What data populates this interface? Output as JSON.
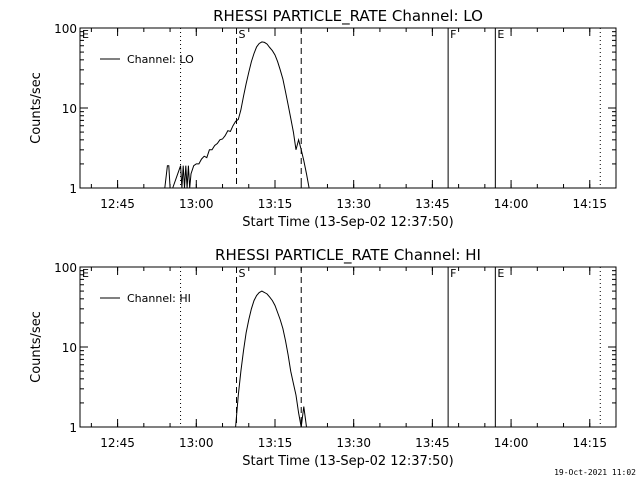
{
  "footer": {
    "timestamp": "19-Oct-2021 11:02"
  },
  "chart_data": [
    {
      "type": "line",
      "title": "RHESSI PARTICLE_RATE Channel: LO",
      "xlabel": "Start Time (13-Sep-02 12:37:50)",
      "ylabel": "Counts/sec",
      "yscale": "log",
      "xlim": [
        "12:37:50",
        "14:20:00"
      ],
      "ylim": [
        1,
        100
      ],
      "xticks": [
        "12:45",
        "13:00",
        "13:15",
        "13:30",
        "13:45",
        "14:00",
        "14:15"
      ],
      "yticks": [
        "1",
        "10",
        "100"
      ],
      "legend": {
        "placement": "top-left",
        "label": "Channel: LO"
      },
      "series": [
        {
          "name": "Channel: LO",
          "x": [
            "12:54:00",
            "12:54:30",
            "12:54:45",
            "12:55:00",
            "12:55:30",
            "12:57:00",
            "12:57:15",
            "12:57:30",
            "12:57:45",
            "12:58:00",
            "12:58:15",
            "12:58:30",
            "12:58:45",
            "12:59:00",
            "12:59:30",
            "13:00:00",
            "13:00:30",
            "13:01:00",
            "13:01:30",
            "13:02:00",
            "13:02:30",
            "13:03:00",
            "13:03:30",
            "13:04:00",
            "13:04:30",
            "13:05:00",
            "13:05:30",
            "13:06:00",
            "13:06:30",
            "13:07:00",
            "13:07:30",
            "13:08:00",
            "13:08:30",
            "13:09:00",
            "13:09:30",
            "13:10:00",
            "13:10:30",
            "13:11:00",
            "13:11:30",
            "13:12:00",
            "13:12:30",
            "13:13:00",
            "13:13:30",
            "13:14:00",
            "13:14:30",
            "13:15:00",
            "13:15:30",
            "13:16:00",
            "13:16:30",
            "13:17:00",
            "13:17:30",
            "13:18:00",
            "13:18:30",
            "13:19:00",
            "13:19:30",
            "13:20:00",
            "13:20:30",
            "13:21:00",
            "13:21:30",
            "13:22:00"
          ],
          "y": [
            1,
            1.9,
            1.9,
            1,
            1,
            1.9,
            1,
            1.9,
            1,
            1.9,
            1,
            1.9,
            1,
            1.5,
            1.9,
            2.0,
            2.0,
            2.3,
            2.5,
            2.4,
            3.0,
            3.0,
            3.4,
            3.6,
            4.0,
            4.1,
            4.5,
            5.2,
            5.1,
            6.0,
            6.8,
            7.2,
            9.5,
            14,
            20,
            28,
            38,
            48,
            58,
            64,
            67,
            66,
            63,
            57,
            52,
            46,
            38,
            30,
            23,
            16,
            11,
            7.5,
            5.0,
            3.0,
            4.0,
            3.0,
            2.2,
            1.5,
            1.0,
            1.0
          ]
        }
      ],
      "annotations": [
        {
          "type": "dotted-line",
          "x": "12:37:50",
          "label": "E"
        },
        {
          "type": "dotted-line",
          "x": "12:57:00",
          "label": ""
        },
        {
          "type": "dashed-line",
          "x": "13:07:40",
          "label": "S"
        },
        {
          "type": "dashed-line",
          "x": "13:20:00",
          "label": ""
        },
        {
          "type": "solid-line",
          "x": "13:48:00",
          "label": "F"
        },
        {
          "type": "solid-line",
          "x": "13:57:00",
          "label": "E"
        },
        {
          "type": "dotted-line",
          "x": "14:17:00",
          "label": ""
        }
      ]
    },
    {
      "type": "line",
      "title": "RHESSI PARTICLE_RATE Channel: HI",
      "xlabel": "Start Time (13-Sep-02 12:37:50)",
      "ylabel": "Counts/sec",
      "yscale": "log",
      "xlim": [
        "12:37:50",
        "14:20:00"
      ],
      "ylim": [
        1,
        100
      ],
      "xticks": [
        "12:45",
        "13:00",
        "13:15",
        "13:30",
        "13:45",
        "14:00",
        "14:15"
      ],
      "yticks": [
        "1",
        "10",
        "100"
      ],
      "legend": {
        "placement": "top-left",
        "label": "Channel: HI"
      },
      "series": [
        {
          "name": "Channel: HI",
          "x": [
            "13:07:30",
            "13:08:00",
            "13:08:30",
            "13:09:00",
            "13:09:30",
            "13:10:00",
            "13:10:30",
            "13:11:00",
            "13:11:30",
            "13:12:00",
            "13:12:30",
            "13:13:00",
            "13:13:30",
            "13:14:00",
            "13:14:30",
            "13:15:00",
            "13:15:30",
            "13:16:00",
            "13:16:30",
            "13:17:00",
            "13:17:30",
            "13:18:00",
            "13:18:30",
            "13:19:00",
            "13:19:30",
            "13:20:00",
            "13:20:30",
            "13:21:00"
          ],
          "y": [
            1,
            2.5,
            5,
            9,
            15,
            22,
            30,
            38,
            44,
            48,
            50,
            48,
            46,
            42,
            38,
            33,
            27,
            22,
            17,
            12,
            8,
            5,
            3.5,
            2.5,
            1.5,
            1.0,
            1.8,
            1.0
          ]
        }
      ],
      "annotations": [
        {
          "type": "dotted-line",
          "x": "12:37:50",
          "label": "E"
        },
        {
          "type": "dotted-line",
          "x": "12:57:00",
          "label": ""
        },
        {
          "type": "dashed-line",
          "x": "13:07:40",
          "label": "S"
        },
        {
          "type": "dashed-line",
          "x": "13:20:00",
          "label": ""
        },
        {
          "type": "solid-line",
          "x": "13:48:00",
          "label": "F"
        },
        {
          "type": "solid-line",
          "x": "13:57:00",
          "label": "E"
        },
        {
          "type": "dotted-line",
          "x": "14:17:00",
          "label": ""
        }
      ]
    }
  ]
}
